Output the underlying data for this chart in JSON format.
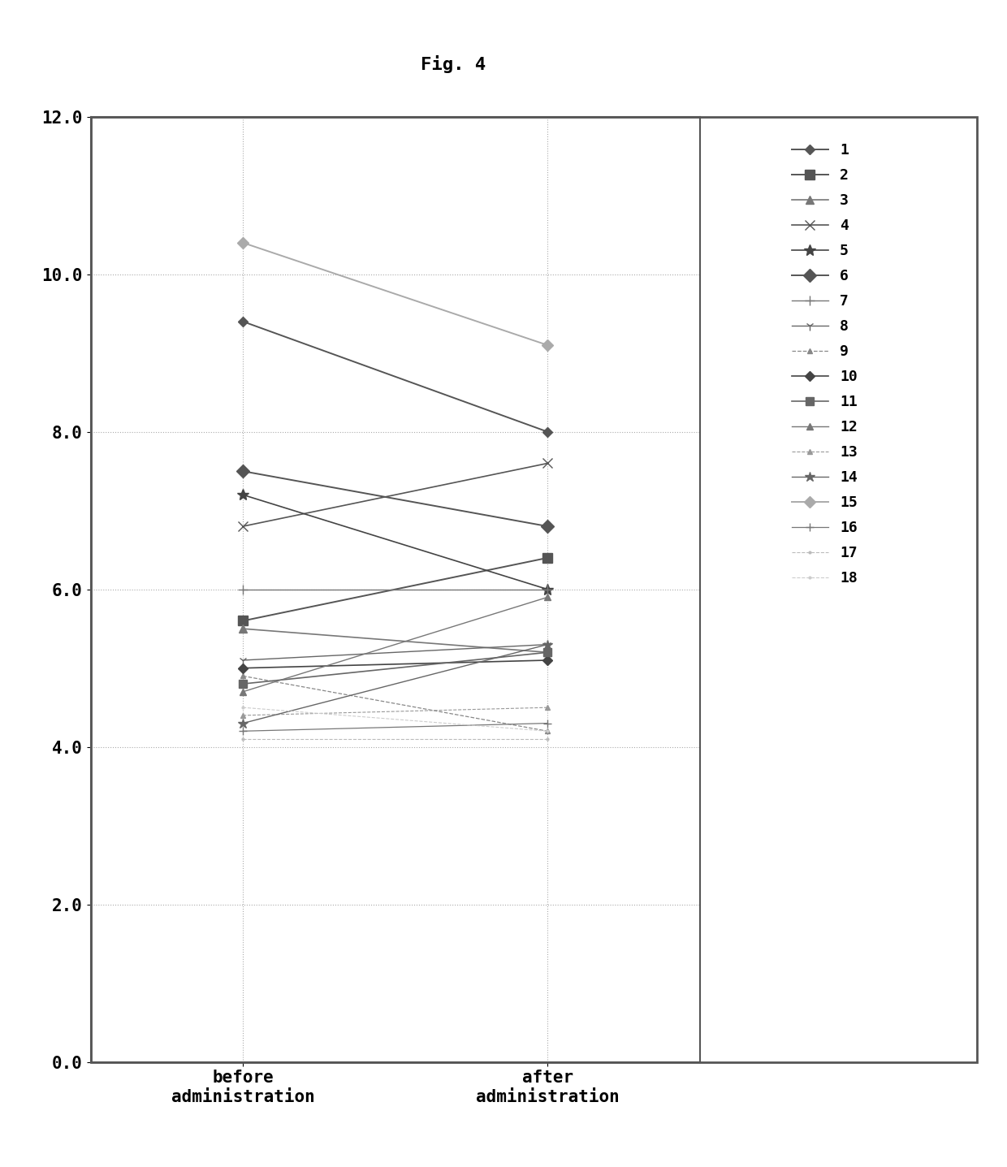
{
  "title": "Fig. 4",
  "xlabel_before": "before\nadministration",
  "xlabel_after": "after\nadministration",
  "ylim": [
    0.0,
    12.0
  ],
  "yticks": [
    0.0,
    2.0,
    4.0,
    6.0,
    8.0,
    10.0,
    12.0
  ],
  "series": [
    {
      "id": "1",
      "before": 9.4,
      "after": 8.0,
      "color": "#555555",
      "marker": "D",
      "markersize": 6,
      "linestyle": "-",
      "linewidth": 1.4
    },
    {
      "id": "2",
      "before": 5.6,
      "after": 6.4,
      "color": "#555555",
      "marker": "s",
      "markersize": 8,
      "linestyle": "-",
      "linewidth": 1.4
    },
    {
      "id": "3",
      "before": 5.5,
      "after": 5.2,
      "color": "#777777",
      "marker": "^",
      "markersize": 7,
      "linestyle": "-",
      "linewidth": 1.2
    },
    {
      "id": "4",
      "before": 6.8,
      "after": 7.6,
      "color": "#555555",
      "marker": "x",
      "markersize": 8,
      "linestyle": "-",
      "linewidth": 1.2
    },
    {
      "id": "5",
      "before": 7.2,
      "after": 6.0,
      "color": "#444444",
      "marker": "*",
      "markersize": 10,
      "linestyle": "-",
      "linewidth": 1.2
    },
    {
      "id": "6",
      "before": 7.5,
      "after": 6.8,
      "color": "#555555",
      "marker": "D",
      "markersize": 8,
      "linestyle": "-",
      "linewidth": 1.4
    },
    {
      "id": "7",
      "before": 6.0,
      "after": 6.0,
      "color": "#777777",
      "marker": "+",
      "markersize": 9,
      "linestyle": "-",
      "linewidth": 1.0
    },
    {
      "id": "8",
      "before": 5.1,
      "after": 5.3,
      "color": "#666666",
      "marker": "1",
      "markersize": 8,
      "linestyle": "-",
      "linewidth": 1.0
    },
    {
      "id": "9",
      "before": 4.9,
      "after": 4.2,
      "color": "#888888",
      "marker": "^",
      "markersize": 5,
      "linestyle": "--",
      "linewidth": 0.9
    },
    {
      "id": "10",
      "before": 5.0,
      "after": 5.1,
      "color": "#444444",
      "marker": "D",
      "markersize": 6,
      "linestyle": "-",
      "linewidth": 1.2
    },
    {
      "id": "11",
      "before": 4.8,
      "after": 5.2,
      "color": "#666666",
      "marker": "s",
      "markersize": 7,
      "linestyle": "-",
      "linewidth": 1.2
    },
    {
      "id": "12",
      "before": 4.7,
      "after": 5.9,
      "color": "#777777",
      "marker": "^",
      "markersize": 6,
      "linestyle": "-",
      "linewidth": 1.0
    },
    {
      "id": "13",
      "before": 4.4,
      "after": 4.5,
      "color": "#999999",
      "marker": "^",
      "markersize": 5,
      "linestyle": "--",
      "linewidth": 0.8
    },
    {
      "id": "14",
      "before": 4.3,
      "after": 5.3,
      "color": "#666666",
      "marker": "*",
      "markersize": 9,
      "linestyle": "-",
      "linewidth": 1.0
    },
    {
      "id": "15",
      "before": 10.4,
      "after": 9.1,
      "color": "#aaaaaa",
      "marker": "D",
      "markersize": 7,
      "linestyle": "-",
      "linewidth": 1.4
    },
    {
      "id": "16",
      "before": 4.2,
      "after": 4.3,
      "color": "#777777",
      "marker": "+",
      "markersize": 7,
      "linestyle": "-",
      "linewidth": 0.9
    },
    {
      "id": "17",
      "before": 4.1,
      "after": 4.1,
      "color": "#bbbbbb",
      "marker": ".",
      "markersize": 4,
      "linestyle": "--",
      "linewidth": 0.8
    },
    {
      "id": "18",
      "before": 4.5,
      "after": 4.2,
      "color": "#cccccc",
      "marker": ".",
      "markersize": 4,
      "linestyle": "--",
      "linewidth": 0.8
    }
  ],
  "background_color": "#ffffff",
  "outer_box_color": "#555555",
  "grid_color": "#aaaaaa",
  "title_fontsize": 16,
  "tick_fontsize": 15,
  "label_fontsize": 15,
  "legend_fontsize": 13
}
